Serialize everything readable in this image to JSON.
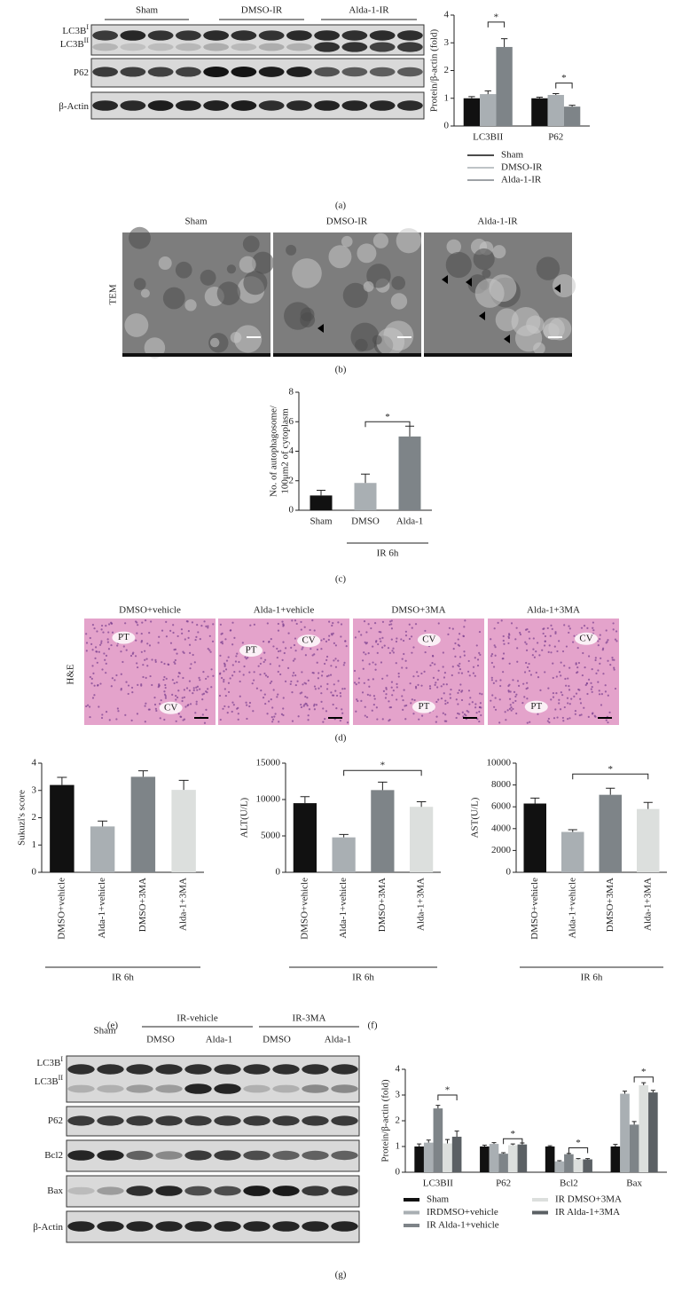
{
  "panels": [
    "(a)",
    "(b)",
    "(c)",
    "(d)",
    "(e)",
    "(f)",
    "(g)"
  ],
  "blot_a": {
    "groups": [
      "Sham",
      "DMSO-IR",
      "Alda-1-IR"
    ],
    "rows": [
      {
        "label": "LC3B",
        "sup": "I"
      },
      {
        "label": "LC3B",
        "sup": "II"
      },
      {
        "label": "P62"
      },
      {
        "label": "β-Actin"
      }
    ]
  },
  "tem": {
    "side_label": "TEM",
    "titles": [
      "Sham",
      "DMSO-IR",
      "Alda-1-IR"
    ]
  },
  "he": {
    "side_label": "H&E",
    "titles": [
      "DMSO+vehicle",
      "Alda-1+vehicle",
      "DMSO+3MA",
      "Alda-1+3MA"
    ],
    "marks": [
      [
        "PT",
        "CV"
      ],
      [
        "PT",
        "CV"
      ],
      [
        "CV",
        "PT"
      ],
      [
        "CV",
        "PT"
      ]
    ]
  },
  "blot_g": {
    "lane_label": "Sham",
    "groups": [
      "IR-vehicle",
      "IR-3MA"
    ],
    "subgroups": [
      "DMSO",
      "Alda-1",
      "DMSO",
      "Alda-1"
    ],
    "rows": [
      {
        "label": "LC3B",
        "sup": "I"
      },
      {
        "label": "LC3B",
        "sup": "II"
      },
      {
        "label": "P62"
      },
      {
        "label": "Bcl2"
      },
      {
        "label": "Bax"
      },
      {
        "label": "β-Actin"
      }
    ]
  },
  "chart_data": [
    {
      "type": "bar",
      "ylabel": "Protein/β-actin (fold)",
      "categories": [
        "LC3BII",
        "P62"
      ],
      "series": [
        {
          "name": "Sham",
          "color": "#111111",
          "values": [
            1.0,
            1.0
          ],
          "errors": [
            0.06,
            0.04
          ]
        },
        {
          "name": "DMSO-IR",
          "color": "#a9afb3",
          "values": [
            1.15,
            1.12
          ],
          "errors": [
            0.12,
            0.05
          ]
        },
        {
          "name": "Alda-1-IR",
          "color": "#7e8488",
          "values": [
            2.85,
            0.7
          ],
          "errors": [
            0.3,
            0.05
          ]
        }
      ],
      "ylim": [
        0,
        4
      ],
      "yticks": [
        0,
        1,
        2,
        3,
        4
      ],
      "annotations": [
        "*",
        "*"
      ]
    },
    {
      "type": "bar",
      "ylabel": [
        "No. of autophagosome/",
        "100μm2 of cytoplasm"
      ],
      "categories": [
        "Sham",
        "DMSO",
        "Alda-1"
      ],
      "values": [
        1.0,
        1.85,
        5.0
      ],
      "errors": [
        0.35,
        0.6,
        0.7
      ],
      "colors": [
        "#111111",
        "#a9afb3",
        "#7e8488"
      ],
      "xgroup": "IR 6h",
      "ylim": [
        0,
        8
      ],
      "yticks": [
        0,
        2,
        4,
        6,
        8
      ],
      "annotations": [
        "*"
      ]
    },
    {
      "type": "bar",
      "ylabel": "Sukuzi's score",
      "categories": [
        "DMSO+vehicle",
        "Alda-1+vehicle",
        "DMSO+3MA",
        "Alda-1+3MA"
      ],
      "values": [
        3.2,
        1.68,
        3.5,
        3.02
      ],
      "errors": [
        0.28,
        0.2,
        0.22,
        0.35
      ],
      "colors": [
        "#111111",
        "#a9afb3",
        "#7e8488",
        "#dcdfdd"
      ],
      "xgroup": "IR 6h",
      "ylim": [
        0,
        4
      ],
      "yticks": [
        0,
        1,
        2,
        3,
        4
      ]
    },
    {
      "type": "bar",
      "ylabel": "ALT(U/L)",
      "categories": [
        "DMSO+vehicle",
        "Alda-1+vehicle",
        "DMSO+3MA",
        "Alda-1+3MA"
      ],
      "values": [
        9500,
        4800,
        11300,
        9000
      ],
      "errors": [
        900,
        400,
        1100,
        700
      ],
      "colors": [
        "#111111",
        "#a9afb3",
        "#7e8488",
        "#dcdfdd"
      ],
      "xgroup": "IR 6h",
      "ylim": [
        0,
        15000
      ],
      "yticks": [
        0,
        5000,
        10000,
        15000
      ],
      "annotations": [
        "*"
      ]
    },
    {
      "type": "bar",
      "ylabel": "AST(U/L)",
      "categories": [
        "DMSO+vehicle",
        "Alda-1+vehicle",
        "DMSO+3MA",
        "Alda-1+3MA"
      ],
      "values": [
        6300,
        3700,
        7100,
        5800
      ],
      "errors": [
        500,
        200,
        600,
        600
      ],
      "colors": [
        "#111111",
        "#a9afb3",
        "#7e8488",
        "#dcdfdd"
      ],
      "xgroup": "IR 6h",
      "ylim": [
        0,
        10000
      ],
      "yticks": [
        0,
        2000,
        4000,
        6000,
        8000,
        10000
      ],
      "annotations": [
        "*"
      ]
    },
    {
      "type": "bar",
      "ylabel": "Protein/β-actin (fold)",
      "categories": [
        "LC3BII",
        "P62",
        "Bcl2",
        "Bax"
      ],
      "series": [
        {
          "name": "Sham",
          "color": "#111111",
          "values": [
            1.0,
            1.0,
            1.0,
            1.0
          ],
          "errors": [
            0.1,
            0.05,
            0.03,
            0.08
          ]
        },
        {
          "name": "IRDMSO+vehicle",
          "color": "#a9afb3",
          "values": [
            1.15,
            1.1,
            0.42,
            3.05
          ],
          "errors": [
            0.1,
            0.05,
            0.03,
            0.1
          ]
        },
        {
          "name": "IR Alda-1+vehicle",
          "color": "#7e8488",
          "values": [
            2.48,
            0.72,
            0.7,
            1.85
          ],
          "errors": [
            0.12,
            0.04,
            0.03,
            0.12
          ]
        },
        {
          "name": "IR DMSO+3MA",
          "color": "#dcdfdd",
          "values": [
            1.12,
            1.05,
            0.5,
            3.38
          ],
          "errors": [
            0.15,
            0.05,
            0.03,
            0.1
          ]
        },
        {
          "name": "IR Alda-1+3MA",
          "color": "#5b6064",
          "values": [
            1.38,
            1.08,
            0.5,
            3.1
          ],
          "errors": [
            0.22,
            0.06,
            0.03,
            0.08
          ]
        }
      ],
      "ylim": [
        0,
        4
      ],
      "yticks": [
        0,
        1,
        2,
        3,
        4
      ],
      "annotations": [
        "*",
        "*",
        "*",
        "*"
      ]
    }
  ]
}
